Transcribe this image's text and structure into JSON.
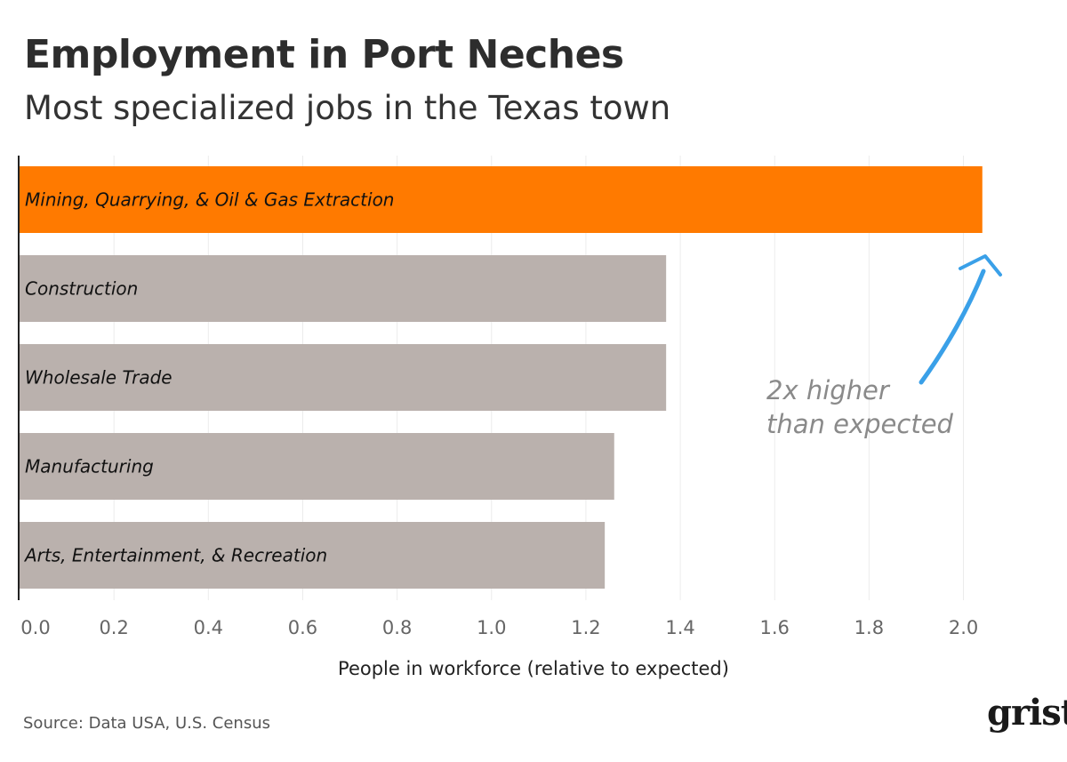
{
  "title": "Employment in Port Neches",
  "subtitle": "Most specialized jobs in the Texas town",
  "source": "Source: Data USA, U.S. Census",
  "logo_text": "grist",
  "colors": {
    "highlight": "#ff7a00",
    "bar": "#bab1ad",
    "annotation_arrow": "#3aa0e8",
    "annotation_text": "#8a8a8a"
  },
  "chart_data": {
    "type": "bar",
    "orientation": "horizontal",
    "categories": [
      "Mining, Quarrying, & Oil & Gas Extraction",
      "Construction",
      "Wholesale Trade",
      "Manufacturing",
      "Arts, Entertainment, & Recreation"
    ],
    "values": [
      2.04,
      1.37,
      1.37,
      1.26,
      1.24
    ],
    "highlight_index": 0,
    "xlabel": "People in workforce (relative to expected)",
    "xlim": [
      0,
      2.08
    ],
    "xticks": [
      "0.0",
      "0.2",
      "0.4",
      "0.6",
      "0.8",
      "1.0",
      "1.2",
      "1.4",
      "1.6",
      "1.8",
      "2.0"
    ],
    "grid": true,
    "annotation": {
      "lines": [
        "2x higher",
        "than expected"
      ]
    }
  }
}
